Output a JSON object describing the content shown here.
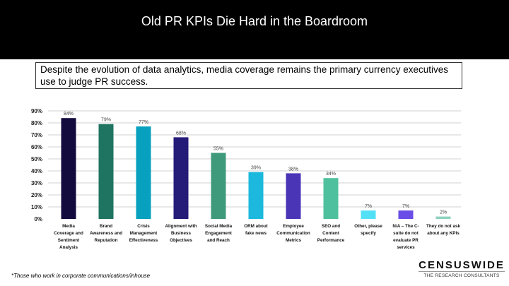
{
  "header": {
    "title": "Old PR KPIs Die Hard in the Boardroom"
  },
  "subtitle": "Despite the evolution of data analytics, media coverage remains the primary currency executives use to judge PR success.",
  "footnote": "*Those who work in corporate communications/inhouse",
  "logo": {
    "name": "CENSUSWIDE",
    "tagline": "THE RESEARCH CONSULTANTS"
  },
  "chart_data": {
    "type": "bar",
    "categories": [
      [
        "Media",
        "Coverage and",
        "Sentiment",
        "Analysis"
      ],
      [
        "Brand",
        "Awareness and",
        "Reputation"
      ],
      [
        "Crisis",
        "Management",
        "Effectiveness"
      ],
      [
        "Alignment with",
        "Business",
        "Objectives"
      ],
      [
        "Social Media",
        "Engagement",
        "and Reach"
      ],
      [
        "ORM about",
        "fake news"
      ],
      [
        "Employee",
        "Communication",
        "Metrics"
      ],
      [
        "SEO and",
        "Content",
        "Performance"
      ],
      [
        "Other, please",
        "specify"
      ],
      [
        "N/A – The C-",
        "suite do not",
        "evaluate PR",
        "services"
      ],
      [
        "They do not ask",
        "about any KPIs"
      ]
    ],
    "values": [
      84,
      79,
      77,
      68,
      55,
      39,
      38,
      34,
      7,
      7,
      2
    ],
    "data_labels": [
      "84%",
      "79%",
      "77%",
      "68%",
      "55%",
      "39%",
      "38%",
      "34%",
      "7%",
      "7%",
      "2%"
    ],
    "colors": [
      "#130b3e",
      "#1e7460",
      "#07a0bf",
      "#241a78",
      "#3f9a7c",
      "#1cb8dd",
      "#4a35b7",
      "#4fc09d",
      "#52e0f6",
      "#6a4ce6",
      "#8ed2bf"
    ],
    "yticks": [
      "0%",
      "10%",
      "20%",
      "30%",
      "40%",
      "50%",
      "60%",
      "70%",
      "80%",
      "90%"
    ],
    "ylim": [
      0,
      90
    ],
    "grid": true,
    "legend": "none"
  }
}
